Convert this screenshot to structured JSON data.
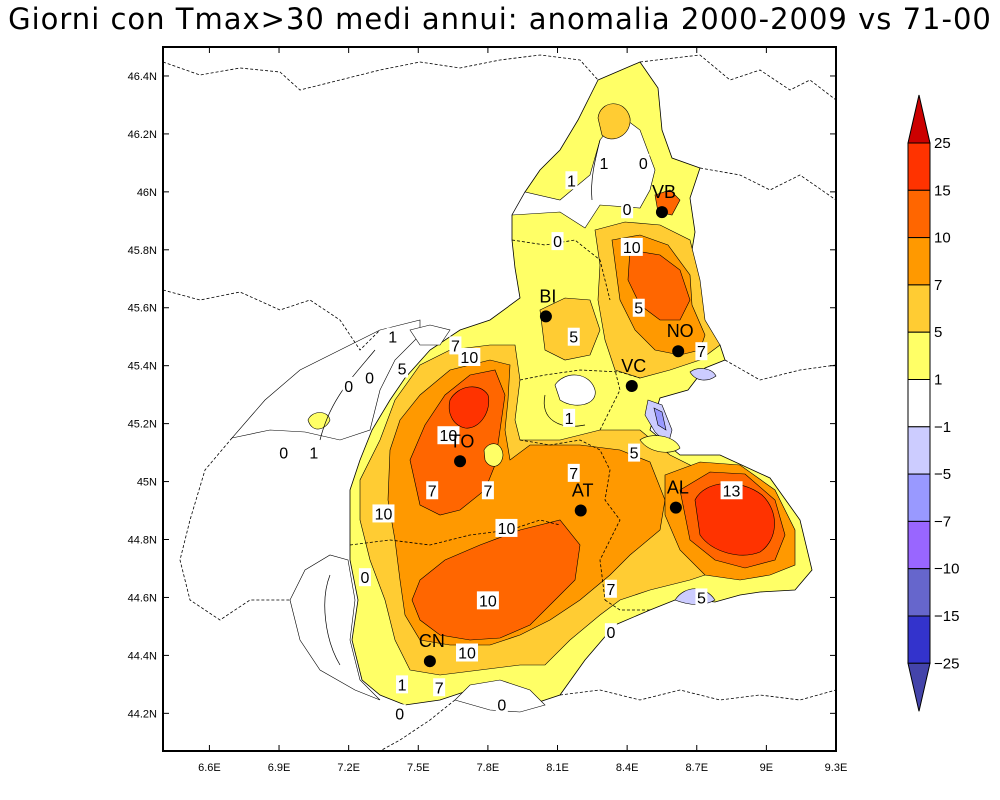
{
  "title": "Giorni con Tmax>30 medi annui: anomalia 2000-2009 vs 71-00",
  "map": {
    "lon_ticks": [
      "6.6E",
      "6.9E",
      "7.2E",
      "7.5E",
      "7.8E",
      "8.1E",
      "8.4E",
      "8.7E",
      "9E",
      "9.3E"
    ],
    "lat_ticks": [
      "46.4N",
      "46.2N",
      "46N",
      "45.8N",
      "45.6N",
      "45.4N",
      "45.2N",
      "45N",
      "44.8N",
      "44.6N",
      "44.4N",
      "44.2N"
    ],
    "cities": [
      {
        "name": "VB",
        "lon": 8.55,
        "lat": 45.93
      },
      {
        "name": "BI",
        "lon": 8.05,
        "lat": 45.57
      },
      {
        "name": "NO",
        "lon": 8.62,
        "lat": 45.45
      },
      {
        "name": "VC",
        "lon": 8.42,
        "lat": 45.33
      },
      {
        "name": "TO",
        "lon": 7.68,
        "lat": 45.07
      },
      {
        "name": "AT",
        "lon": 8.2,
        "lat": 44.9
      },
      {
        "name": "AL",
        "lon": 8.61,
        "lat": 44.91
      },
      {
        "name": "CN",
        "lon": 7.55,
        "lat": 44.38
      }
    ],
    "contour_labels": [
      {
        "text": "1",
        "lon": 8.3,
        "lat": 46.1
      },
      {
        "text": "0",
        "lon": 8.47,
        "lat": 46.1
      },
      {
        "text": "1",
        "lon": 8.16,
        "lat": 46.04
      },
      {
        "text": "0",
        "lon": 8.4,
        "lat": 45.94
      },
      {
        "text": "0",
        "lon": 8.1,
        "lat": 45.83
      },
      {
        "text": "10",
        "lon": 8.42,
        "lat": 45.81
      },
      {
        "text": "5",
        "lon": 8.45,
        "lat": 45.6
      },
      {
        "text": "5",
        "lon": 8.17,
        "lat": 45.5
      },
      {
        "text": "1",
        "lon": 7.39,
        "lat": 45.5
      },
      {
        "text": "7",
        "lon": 7.66,
        "lat": 45.47
      },
      {
        "text": "10",
        "lon": 7.72,
        "lat": 45.43
      },
      {
        "text": "5",
        "lon": 7.43,
        "lat": 45.39
      },
      {
        "text": "0",
        "lon": 7.2,
        "lat": 45.33
      },
      {
        "text": "0",
        "lon": 7.29,
        "lat": 45.36
      },
      {
        "text": "7",
        "lon": 8.72,
        "lat": 45.45
      },
      {
        "text": "1",
        "lon": 8.15,
        "lat": 45.22
      },
      {
        "text": "10",
        "lon": 7.63,
        "lat": 45.16
      },
      {
        "text": "0",
        "lon": 6.92,
        "lat": 45.1
      },
      {
        "text": "1",
        "lon": 7.05,
        "lat": 45.1
      },
      {
        "text": "5",
        "lon": 8.43,
        "lat": 45.1
      },
      {
        "text": "7",
        "lon": 8.17,
        "lat": 45.03
      },
      {
        "text": "7",
        "lon": 7.56,
        "lat": 44.97
      },
      {
        "text": "7",
        "lon": 7.8,
        "lat": 44.97
      },
      {
        "text": "10",
        "lon": 7.35,
        "lat": 44.89
      },
      {
        "text": "10",
        "lon": 7.88,
        "lat": 44.84
      },
      {
        "text": "13",
        "lon": 8.85,
        "lat": 44.97
      },
      {
        "text": "0",
        "lon": 7.27,
        "lat": 44.67
      },
      {
        "text": "10",
        "lon": 7.8,
        "lat": 44.59
      },
      {
        "text": "7",
        "lon": 8.33,
        "lat": 44.63
      },
      {
        "text": "5",
        "lon": 8.72,
        "lat": 44.6
      },
      {
        "text": "0",
        "lon": 8.33,
        "lat": 44.48
      },
      {
        "text": "10",
        "lon": 7.71,
        "lat": 44.41
      },
      {
        "text": "7",
        "lon": 7.59,
        "lat": 44.29
      },
      {
        "text": "1",
        "lon": 7.43,
        "lat": 44.3
      },
      {
        "text": "0",
        "lon": 7.42,
        "lat": 44.2
      },
      {
        "text": "0",
        "lon": 7.86,
        "lat": 44.23
      }
    ]
  },
  "colorbar": {
    "labels": [
      "25",
      "15",
      "10",
      "7",
      "5",
      "1",
      "−1",
      "−5",
      "−7",
      "−10",
      "−15",
      "−25"
    ],
    "colors": [
      "#cc0000",
      "#ff3300",
      "#ff6600",
      "#ff9900",
      "#ffcc33",
      "#ffff66",
      "#ffffff",
      "#ccccff",
      "#9999ff",
      "#9966ff",
      "#6666cc",
      "#3333cc",
      "#4444aa"
    ]
  }
}
